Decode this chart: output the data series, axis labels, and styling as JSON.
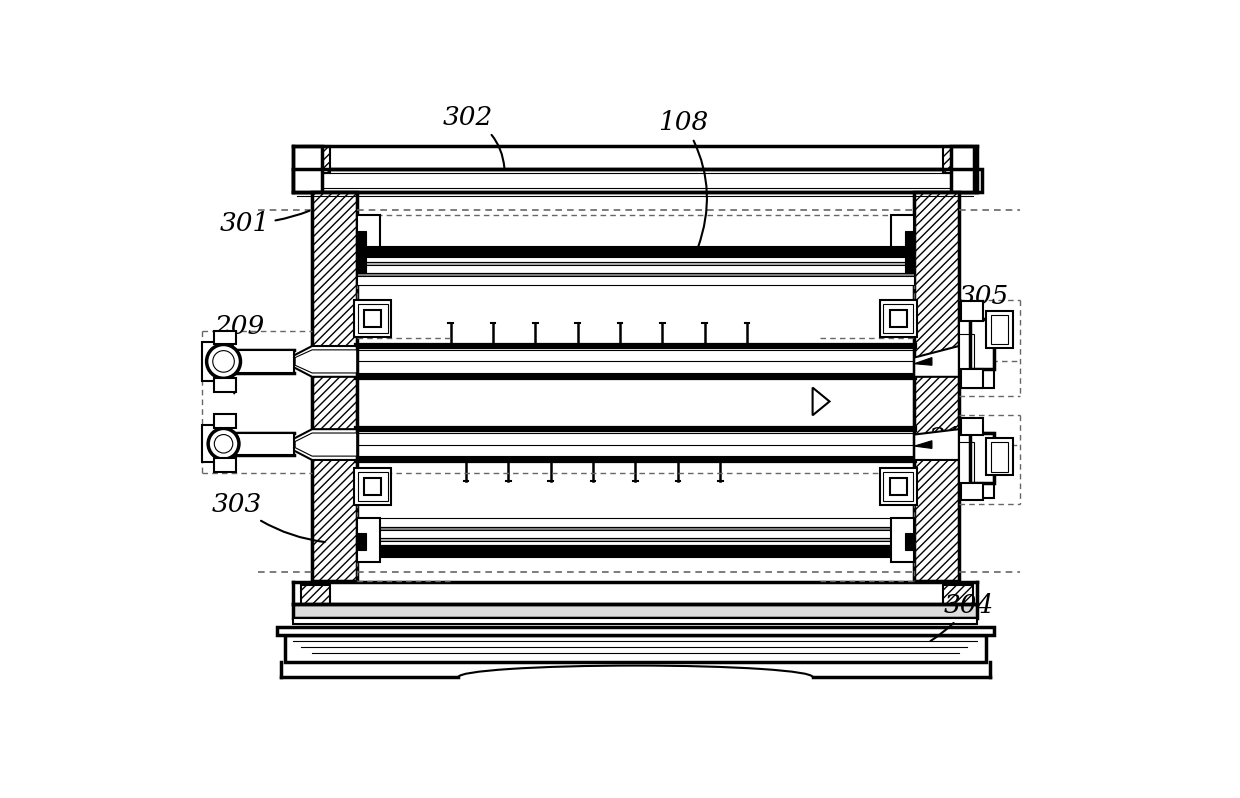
{
  "bg_color": "#ffffff",
  "lc": "#000000",
  "fig_width": 12.4,
  "fig_height": 7.98,
  "lw_thin": 0.8,
  "lw_med": 1.5,
  "lw_thick": 2.5,
  "lw_vthick": 4.5,
  "label_fs": 19
}
